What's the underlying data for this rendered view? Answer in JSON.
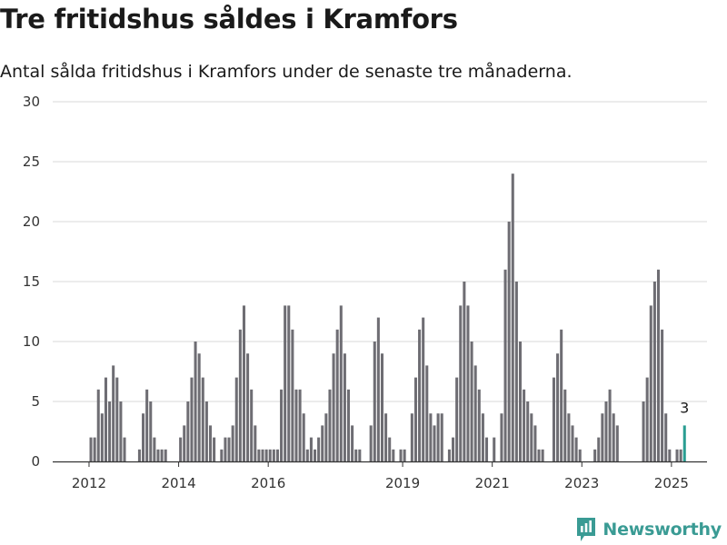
{
  "title": "Tre fritidshus såldes i Kramfors",
  "subtitle": "Antal sålda fritidshus i Kramfors under de senaste tre månaderna.",
  "brand": {
    "name": "Newsworthy",
    "color": "#3a9b94",
    "icon": "newsworthy-logo-icon"
  },
  "colors": {
    "bar": "#6e6d73",
    "highlight": "#2a9d92",
    "grid": "#d9d9d9",
    "axis": "#333333"
  },
  "chart_data": {
    "type": "bar",
    "ylim": [
      0,
      30
    ],
    "yticks": [
      0,
      5,
      10,
      15,
      20,
      25,
      30
    ],
    "grid": true,
    "xlim": [
      2011.25,
      2025.92
    ],
    "xticks": [
      2012,
      2014,
      2016,
      2019,
      2021,
      2023,
      2025
    ],
    "start_year": 2012,
    "start_month": 1,
    "values": [
      2,
      2,
      6,
      4,
      7,
      5,
      8,
      7,
      5,
      2,
      0,
      0,
      0,
      1,
      4,
      6,
      5,
      2,
      1,
      1,
      1,
      0,
      0,
      0,
      2,
      3,
      5,
      7,
      10,
      9,
      7,
      5,
      3,
      2,
      0,
      1,
      2,
      2,
      3,
      7,
      11,
      13,
      9,
      6,
      3,
      1,
      1,
      1,
      1,
      1,
      1,
      6,
      13,
      13,
      11,
      6,
      6,
      4,
      1,
      2,
      1,
      2,
      3,
      4,
      6,
      9,
      11,
      13,
      9,
      6,
      3,
      1,
      1,
      0,
      0,
      3,
      10,
      12,
      9,
      4,
      2,
      1,
      0,
      1,
      1,
      0,
      4,
      7,
      11,
      12,
      8,
      4,
      3,
      4,
      4,
      0,
      1,
      2,
      7,
      13,
      15,
      13,
      10,
      8,
      6,
      4,
      2,
      0,
      2,
      0,
      4,
      16,
      20,
      24,
      15,
      10,
      6,
      5,
      4,
      3,
      1,
      1,
      0,
      0,
      7,
      9,
      11,
      6,
      4,
      3,
      2,
      1,
      0,
      0,
      0,
      1,
      2,
      4,
      5,
      6,
      4,
      3,
      0,
      0,
      0,
      0,
      0,
      0,
      5,
      7,
      13,
      15,
      16,
      11,
      4,
      1,
      0,
      1,
      1,
      3
    ],
    "highlight_last": true,
    "last_label": "3"
  }
}
